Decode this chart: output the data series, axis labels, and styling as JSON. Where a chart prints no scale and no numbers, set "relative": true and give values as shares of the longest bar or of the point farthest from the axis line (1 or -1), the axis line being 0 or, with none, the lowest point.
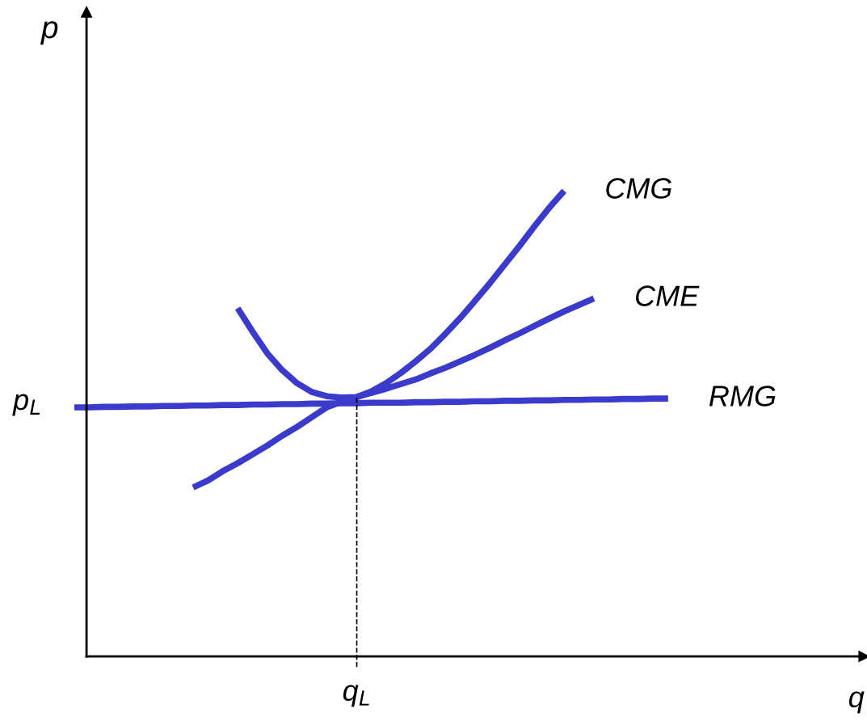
{
  "chart_data": {
    "type": "line",
    "relative": true,
    "ylabel": "p",
    "categories": [
      null,
      null,
      null,
      null,
      null,
      null,
      null,
      null,
      null,
      null,
      null,
      null,
      null,
      null,
      null,
      null,
      null,
      null,
      null,
      null,
      null,
      null,
      null,
      null,
      null,
      null,
      null,
      null,
      null,
      null,
      null,
      null,
      null,
      null,
      null,
      null,
      null,
      null,
      null,
      null,
      null
    ],
    "annotations": [
      "p$_{L}$",
      "q$_{L}$",
      "q"
    ],
    "grid": false,
    "legend": false,
    "marker": "none",
    "line_style": "solid",
    "series": [
      {
        "name": "CMG",
        "color": "#3a3acc",
        "values": [
          null,
          null,
          null,
          null,
          null,
          null,
          null,
          null,
          null,
          null,
          null,
          0.748,
          0.698,
          0.651,
          0.615,
          0.587,
          0.568,
          0.559,
          0.556,
          0.557,
          0.569,
          0.587,
          0.609,
          0.634,
          0.661,
          0.693,
          0.727,
          0.764,
          0.802,
          0.842,
          0.882,
          0.924,
          0.964,
          1.0,
          null,
          null,
          null,
          null,
          null,
          null,
          null
        ]
      },
      {
        "name": "CME",
        "color": "#3a3acc",
        "values": [
          null,
          null,
          null,
          null,
          null,
          null,
          null,
          null,
          0.363,
          0.378,
          0.398,
          0.415,
          0.434,
          0.453,
          0.474,
          0.493,
          0.514,
          0.535,
          0.547,
          0.557,
          0.566,
          0.575,
          0.585,
          0.595,
          0.608,
          0.62,
          0.634,
          0.648,
          0.663,
          0.679,
          0.694,
          0.71,
          0.726,
          0.741,
          0.755,
          0.769,
          null,
          null,
          null,
          null,
          null
        ]
      },
      {
        "name": "RMG",
        "color": "#3a3acc",
        "values": [
          0.535,
          0.535,
          0.536,
          0.536,
          0.537,
          0.537,
          0.538,
          0.538,
          0.539,
          0.539,
          0.54,
          0.54,
          0.541,
          0.541,
          0.542,
          0.542,
          0.543,
          0.543,
          0.544,
          0.544,
          0.545,
          0.545,
          0.545,
          0.546,
          0.546,
          0.547,
          0.547,
          0.548,
          0.548,
          0.549,
          0.549,
          0.55,
          0.55,
          0.551,
          0.551,
          0.552,
          0.552,
          0.553,
          0.553,
          0.554,
          0.554
        ]
      }
    ]
  }
}
